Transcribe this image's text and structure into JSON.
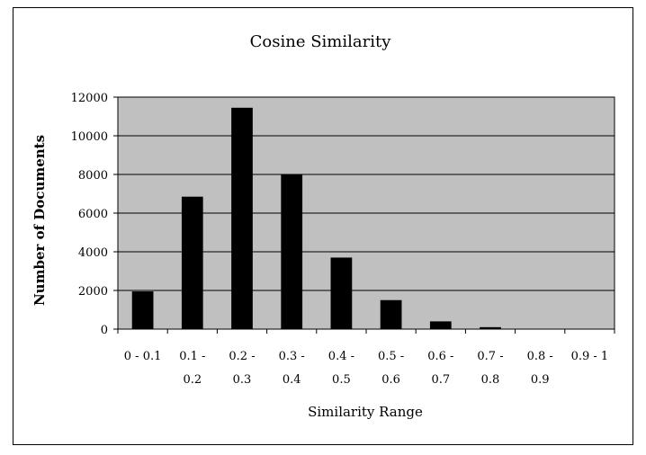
{
  "chart_data": {
    "type": "bar",
    "title": "Cosine Similarity",
    "xlabel": "Similarity Range",
    "ylabel": "Number of Documents",
    "categories": [
      [
        "0 - 0.1"
      ],
      [
        "0.1 -",
        "0.2"
      ],
      [
        "0.2 -",
        "0.3"
      ],
      [
        "0.3 -",
        "0.4"
      ],
      [
        "0.4 -",
        "0.5"
      ],
      [
        "0.5 -",
        "0.6"
      ],
      [
        "0.6 -",
        "0.7"
      ],
      [
        "0.7 -",
        "0.8"
      ],
      [
        "0.8 -",
        "0.9"
      ],
      [
        "0.9 - 1"
      ]
    ],
    "values": [
      1950,
      6850,
      11450,
      8000,
      3700,
      1500,
      400,
      100,
      20,
      10
    ],
    "ylim": [
      0,
      12000
    ],
    "yticks": [
      0,
      2000,
      4000,
      6000,
      8000,
      10000,
      12000
    ],
    "grid": true,
    "legend": "none",
    "colors": {
      "plot_background": "#c0c0c0",
      "bar": "#000000",
      "gridline": "#000000",
      "frame": "#000000"
    }
  }
}
